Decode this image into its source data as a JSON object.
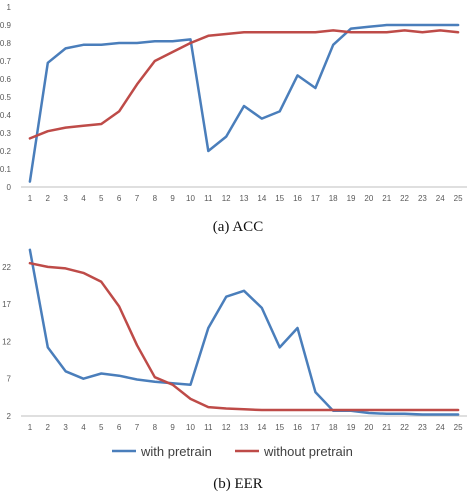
{
  "colors": {
    "with_pretrain": "#4a7ebb",
    "without_pretrain": "#be4b48",
    "axis": "#bfbfbf",
    "tick": "#595959"
  },
  "legend": {
    "with_pretrain": "with pretrain",
    "without_pretrain": "without pretrain",
    "placement": "bottom"
  },
  "captions": {
    "acc": "(a) ACC",
    "eer": "(b) EER"
  },
  "chart_data": [
    {
      "type": "line",
      "title": "",
      "xlabel": "",
      "ylabel": "",
      "x": [
        1,
        2,
        3,
        4,
        5,
        6,
        7,
        8,
        9,
        10,
        11,
        12,
        13,
        14,
        15,
        16,
        17,
        18,
        19,
        20,
        21,
        22,
        23,
        24,
        25
      ],
      "ylim": [
        0,
        1
      ],
      "yticks": [
        0,
        0.1,
        0.2,
        0.3,
        0.4,
        0.5,
        0.6,
        0.7,
        0.8,
        0.9,
        1
      ],
      "grid": false,
      "series": [
        {
          "name": "with pretrain",
          "values": [
            0.03,
            0.69,
            0.77,
            0.79,
            0.79,
            0.8,
            0.8,
            0.81,
            0.81,
            0.82,
            0.2,
            0.28,
            0.45,
            0.38,
            0.42,
            0.62,
            0.55,
            0.79,
            0.88,
            0.89,
            0.9,
            0.9,
            0.9,
            0.9,
            0.9
          ]
        },
        {
          "name": "without pretrain",
          "values": [
            0.27,
            0.31,
            0.33,
            0.34,
            0.35,
            0.42,
            0.57,
            0.7,
            0.75,
            0.8,
            0.84,
            0.85,
            0.86,
            0.86,
            0.86,
            0.86,
            0.86,
            0.87,
            0.86,
            0.86,
            0.86,
            0.87,
            0.86,
            0.87,
            0.86
          ]
        }
      ]
    },
    {
      "type": "line",
      "title": "",
      "xlabel": "",
      "ylabel": "",
      "x": [
        1,
        2,
        3,
        4,
        5,
        6,
        7,
        8,
        9,
        10,
        11,
        12,
        13,
        14,
        15,
        16,
        17,
        18,
        19,
        20,
        21,
        22,
        23,
        24,
        25
      ],
      "ylim": [
        2,
        24
      ],
      "yticks": [
        2,
        7,
        12,
        17,
        22
      ],
      "grid": false,
      "series": [
        {
          "name": "with pretrain",
          "values": [
            24.3,
            11.2,
            8.0,
            7.0,
            7.7,
            7.4,
            6.9,
            6.6,
            6.4,
            6.2,
            13.8,
            18.0,
            18.8,
            16.5,
            11.2,
            13.8,
            5.2,
            2.7,
            2.7,
            2.4,
            2.3,
            2.3,
            2.2,
            2.2,
            2.2
          ]
        },
        {
          "name": "without pretrain",
          "values": [
            22.5,
            22.0,
            21.8,
            21.2,
            20.0,
            16.7,
            11.5,
            7.2,
            6.2,
            4.3,
            3.2,
            3.0,
            2.9,
            2.8,
            2.8,
            2.8,
            2.8,
            2.8,
            2.8,
            2.8,
            2.8,
            2.8,
            2.8,
            2.8,
            2.8
          ]
        }
      ]
    }
  ]
}
